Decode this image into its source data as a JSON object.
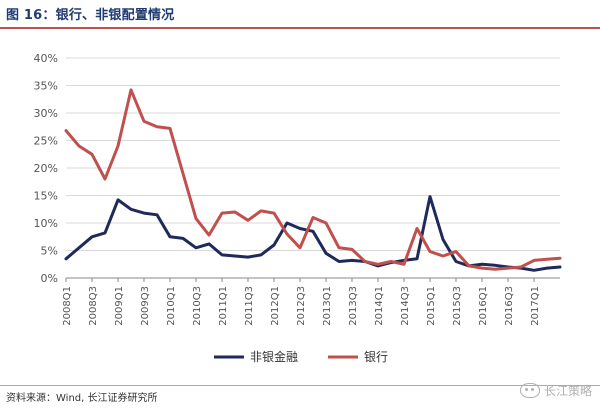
{
  "title": "图 16：银行、非银配置情况",
  "source": "资料来源：Wind, 长江证券研究所",
  "watermark": "长江策略",
  "colors": {
    "nonbank": "#1f2a5a",
    "bank": "#c0504d",
    "title": "#1f3b70",
    "rule": "#c0504d"
  },
  "chart_data": {
    "type": "line",
    "ylim": [
      0,
      40
    ],
    "yticks": [
      "0%",
      "5%",
      "10%",
      "15%",
      "20%",
      "25%",
      "30%",
      "35%",
      "40%"
    ],
    "xtick_labels": [
      "2008Q1",
      "2008Q3",
      "2009Q1",
      "2009Q3",
      "2010Q1",
      "2010Q3",
      "2011Q1",
      "2011Q3",
      "2012Q1",
      "2012Q3",
      "2013Q1",
      "2013Q3",
      "2014Q1",
      "2014Q3",
      "2015Q1",
      "2015Q3",
      "2016Q1",
      "2016Q3",
      "2017Q1"
    ],
    "legend_position": "bottom",
    "series": [
      {
        "name": "非银金融",
        "color": "#1f2a5a",
        "values": [
          3.5,
          5.5,
          7.5,
          8.2,
          14.2,
          12.5,
          11.8,
          11.5,
          7.5,
          7.2,
          5.5,
          6.2,
          4.2,
          4.0,
          3.8,
          4.2,
          6.0,
          10.0,
          9.0,
          8.5,
          4.5,
          3.0,
          3.2,
          3.0,
          2.2,
          2.8,
          3.2,
          3.5,
          14.8,
          7.0,
          3.0,
          2.2,
          2.5,
          2.3,
          2.0,
          1.8,
          1.4,
          1.8,
          2.0
        ]
      },
      {
        "name": "银行",
        "color": "#c0504d",
        "values": [
          26.8,
          24.0,
          22.5,
          18.0,
          24.0,
          34.2,
          28.5,
          27.5,
          27.2,
          19.0,
          10.8,
          7.8,
          11.8,
          12.0,
          10.5,
          12.2,
          11.8,
          8.0,
          5.5,
          11.0,
          10.0,
          5.5,
          5.2,
          3.0,
          2.5,
          3.0,
          2.5,
          9.0,
          4.8,
          4.0,
          4.8,
          2.2,
          1.8,
          1.6,
          1.8,
          2.0,
          3.2,
          3.4,
          3.6
        ]
      }
    ]
  }
}
